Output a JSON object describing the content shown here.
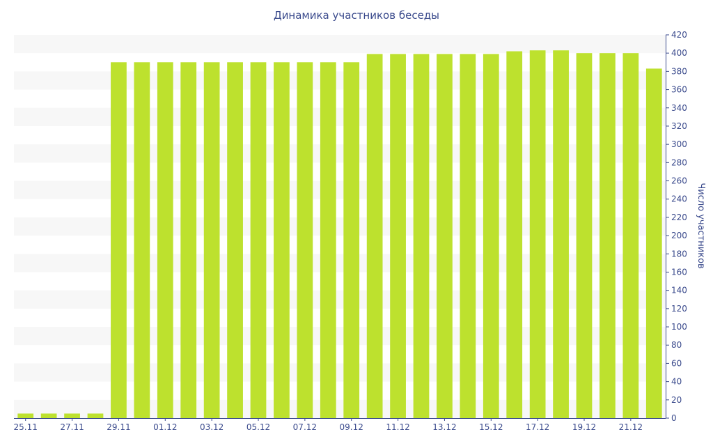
{
  "chart_data": {
    "type": "bar",
    "title": "Динамика участников беседы",
    "ylabel": "Число участников",
    "xlabel": "",
    "ylim": [
      0,
      420
    ],
    "y_ticks": [
      0,
      20,
      40,
      60,
      80,
      100,
      120,
      140,
      160,
      180,
      200,
      220,
      240,
      260,
      280,
      300,
      320,
      340,
      360,
      380,
      400,
      420
    ],
    "y_axis_side": "right",
    "grid": "horizontal alternating bands",
    "bar_color": "#bde12e",
    "band_color": "#f7f7f7",
    "text_color": "#3a4a8c",
    "categories": [
      "25.11",
      "26.11",
      "27.11",
      "28.11",
      "29.11",
      "30.11",
      "01.12",
      "02.12",
      "03.12",
      "04.12",
      "05.12",
      "06.12",
      "07.12",
      "08.12",
      "09.12",
      "10.12",
      "11.12",
      "12.12",
      "13.12",
      "14.12",
      "15.12",
      "16.12",
      "17.12",
      "18.12",
      "19.12",
      "20.12",
      "21.12",
      "22.12"
    ],
    "x_tick_labels": [
      "25.11",
      "",
      "27.11",
      "",
      "29.11",
      "",
      "01.12",
      "",
      "03.12",
      "",
      "05.12",
      "",
      "07.12",
      "",
      "09.12",
      "",
      "11.12",
      "",
      "13.12",
      "",
      "15.12",
      "",
      "17.12",
      "",
      "19.12",
      "",
      "21.12",
      ""
    ],
    "values": [
      5,
      5,
      5,
      5,
      390,
      390,
      390,
      390,
      390,
      390,
      390,
      390,
      390,
      390,
      390,
      399,
      399,
      399,
      399,
      399,
      399,
      402,
      403,
      403,
      400,
      400,
      400,
      383
    ]
  }
}
